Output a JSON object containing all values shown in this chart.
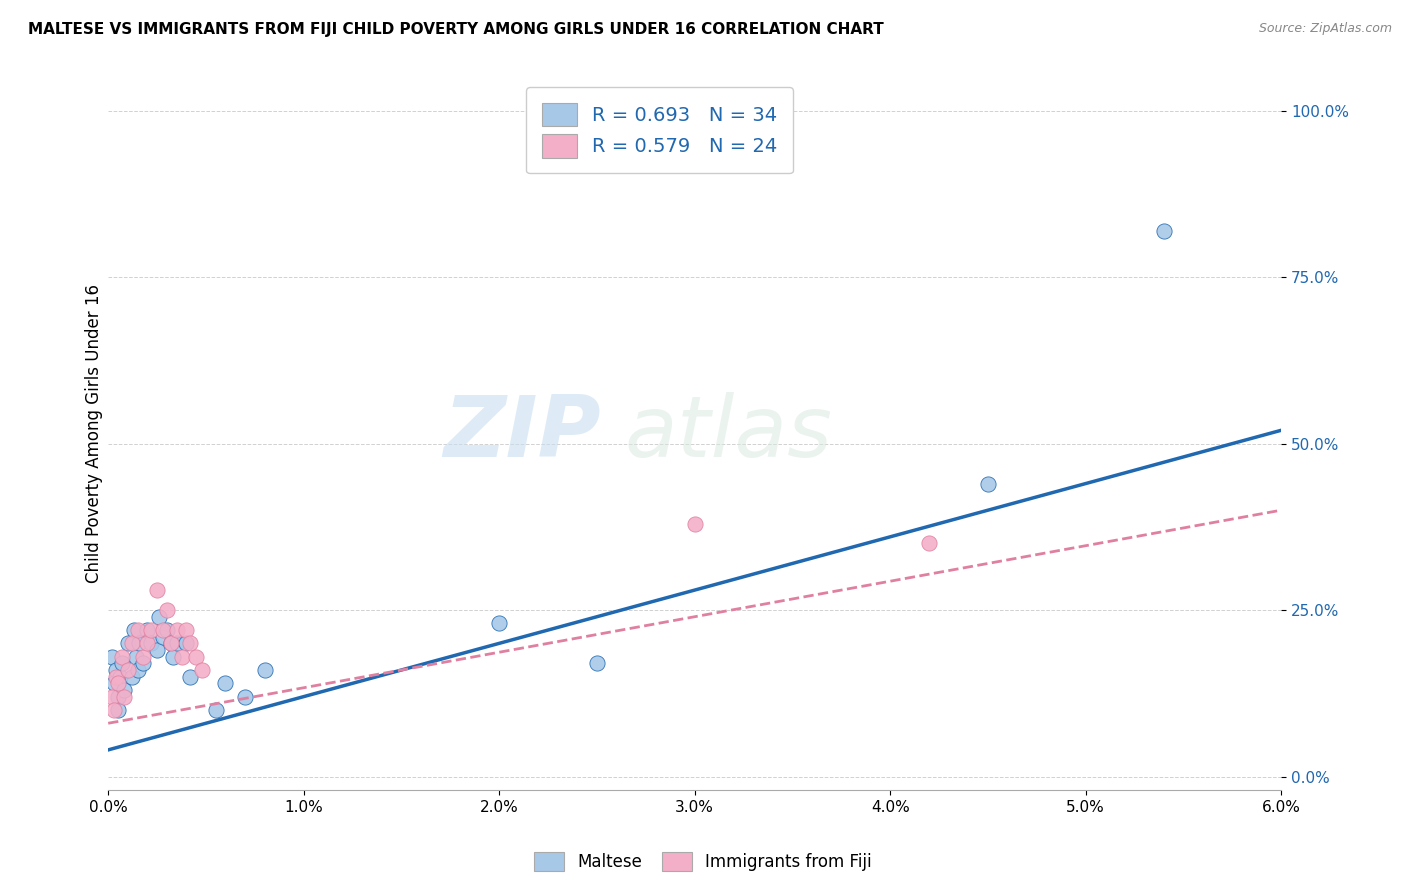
{
  "title": "MALTESE VS IMMIGRANTS FROM FIJI CHILD POVERTY AMONG GIRLS UNDER 16 CORRELATION CHART",
  "source": "Source: ZipAtlas.com",
  "ylabel": "Child Poverty Among Girls Under 16",
  "xlim": [
    0.0,
    0.06
  ],
  "ylim": [
    -0.02,
    1.05
  ],
  "xtick_labels": [
    "0.0%",
    "1.0%",
    "2.0%",
    "3.0%",
    "4.0%",
    "5.0%",
    "6.0%"
  ],
  "xtick_vals": [
    0.0,
    0.01,
    0.02,
    0.03,
    0.04,
    0.05,
    0.06
  ],
  "ytick_labels": [
    "0.0%",
    "25.0%",
    "50.0%",
    "75.0%",
    "100.0%"
  ],
  "ytick_vals": [
    0.0,
    0.25,
    0.5,
    0.75,
    1.0
  ],
  "maltese_color": "#a8c8e8",
  "fiji_color": "#f4afc8",
  "maltese_line_color": "#2068b0",
  "fiji_line_color": "#e080a0",
  "legend_text_color": "#2068b0",
  "watermark_zip": "ZIP",
  "watermark_atlas": "atlas",
  "maltese_R": 0.693,
  "maltese_N": 34,
  "fiji_R": 0.579,
  "fiji_N": 24,
  "maltese_x": [
    0.0002,
    0.0003,
    0.0004,
    0.0005,
    0.0005,
    0.0006,
    0.0007,
    0.0008,
    0.001,
    0.0012,
    0.0013,
    0.0014,
    0.0015,
    0.0016,
    0.0018,
    0.002,
    0.0022,
    0.0025,
    0.0026,
    0.0028,
    0.003,
    0.0032,
    0.0033,
    0.0035,
    0.004,
    0.0042,
    0.0055,
    0.006,
    0.007,
    0.008,
    0.02,
    0.025,
    0.045,
    0.054
  ],
  "maltese_y": [
    0.18,
    0.14,
    0.16,
    0.12,
    0.1,
    0.15,
    0.17,
    0.13,
    0.2,
    0.15,
    0.22,
    0.18,
    0.16,
    0.2,
    0.17,
    0.22,
    0.2,
    0.19,
    0.24,
    0.21,
    0.22,
    0.2,
    0.18,
    0.2,
    0.2,
    0.15,
    0.1,
    0.14,
    0.12,
    0.16,
    0.23,
    0.17,
    0.44,
    0.82
  ],
  "fiji_x": [
    0.0002,
    0.0003,
    0.0004,
    0.0005,
    0.0007,
    0.0008,
    0.001,
    0.0012,
    0.0015,
    0.0018,
    0.002,
    0.0022,
    0.0025,
    0.0028,
    0.003,
    0.0032,
    0.0035,
    0.0038,
    0.004,
    0.0042,
    0.0045,
    0.0048,
    0.03,
    0.042
  ],
  "fiji_y": [
    0.12,
    0.1,
    0.15,
    0.14,
    0.18,
    0.12,
    0.16,
    0.2,
    0.22,
    0.18,
    0.2,
    0.22,
    0.28,
    0.22,
    0.25,
    0.2,
    0.22,
    0.18,
    0.22,
    0.2,
    0.18,
    0.16,
    0.38,
    0.35
  ],
  "maltese_line_x": [
    0.0,
    0.06
  ],
  "maltese_line_y": [
    0.04,
    0.52
  ],
  "fiji_line_x": [
    0.0,
    0.06
  ],
  "fiji_line_y": [
    0.08,
    0.4
  ],
  "scatter_size": 120
}
